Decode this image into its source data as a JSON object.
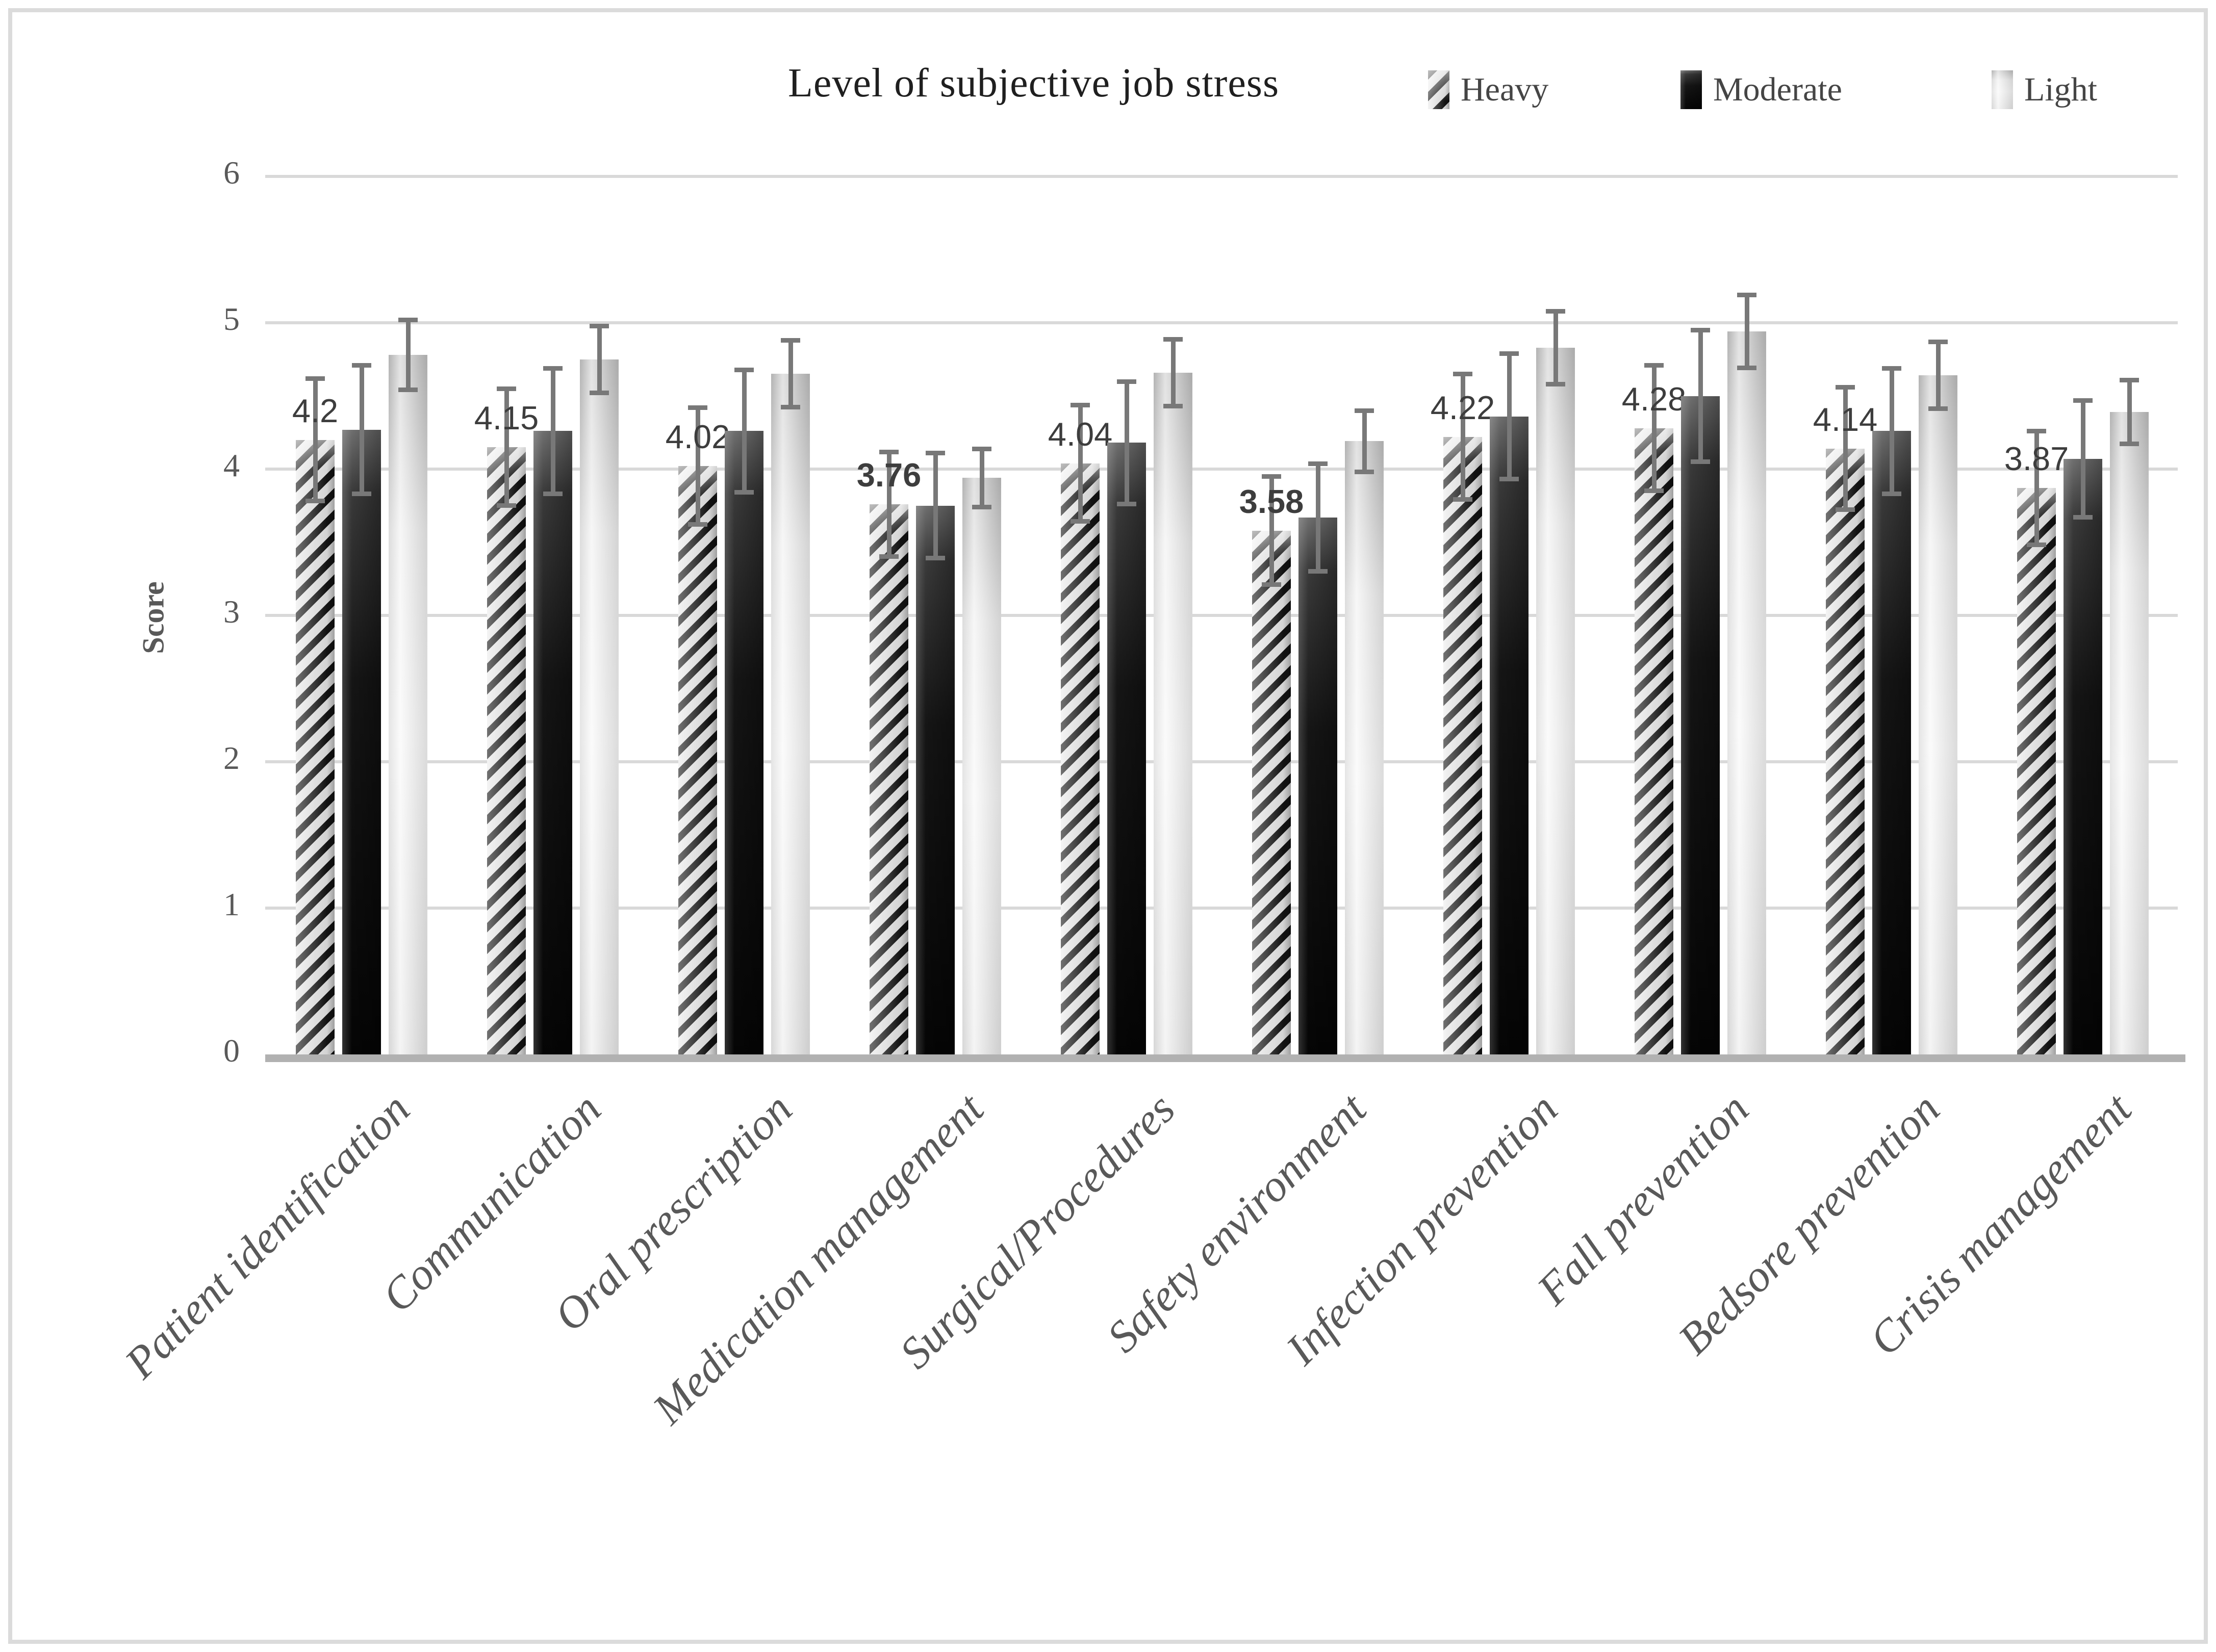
{
  "header": {
    "title": "Level of subjective job stress"
  },
  "legend": [
    {
      "label": "Heavy",
      "style": "hatched"
    },
    {
      "label": "Moderate",
      "style": "dark"
    },
    {
      "label": "Light",
      "style": "light"
    }
  ],
  "y_axis": {
    "title": "Score",
    "ticks": [
      "0",
      "1",
      "2",
      "3",
      "4",
      "5",
      "6"
    ]
  },
  "colors": {
    "hatch_dark": "#141414",
    "hatch_light": "#ebebeb",
    "moderate_fill": "#151515",
    "light_fill": "#ededed",
    "error_bar": "#787878",
    "gridline": "#d9d9d9",
    "axis_line": "#b1b1b1",
    "text_gray": "#595959",
    "figure_border": "#dbdbdb"
  },
  "chart_data": {
    "type": "bar",
    "title": "Level of subjective job stress",
    "xlabel": "",
    "ylabel": "Score",
    "ylim": [
      0,
      6
    ],
    "grid": true,
    "legend_position": "top",
    "categories": [
      "Patient identification",
      "Communication",
      "Oral prescription",
      "Medication management",
      "Surgical/Procedures",
      "Safety environment",
      "Infection prevention",
      "Fall prevention",
      "Bedsore prevention",
      "Crisis management"
    ],
    "series": [
      {
        "name": "Heavy",
        "values": [
          4.2,
          4.15,
          4.02,
          3.76,
          4.04,
          3.58,
          4.22,
          4.28,
          4.14,
          3.87
        ],
        "errors": [
          0.42,
          0.4,
          0.4,
          0.36,
          0.4,
          0.37,
          0.43,
          0.43,
          0.42,
          0.39
        ],
        "data_labels": [
          "4.2",
          "4.15",
          "4.02",
          "3.76",
          "4.04",
          "3.58",
          "4.22",
          "4.28",
          "4.14",
          "3.87"
        ],
        "bold_labels": [
          false,
          false,
          false,
          true,
          false,
          true,
          false,
          false,
          false,
          false
        ]
      },
      {
        "name": "Moderate",
        "values": [
          4.27,
          4.26,
          4.26,
          3.75,
          4.18,
          3.67,
          4.36,
          4.5,
          4.26,
          4.07
        ],
        "errors": [
          0.44,
          0.43,
          0.42,
          0.36,
          0.42,
          0.37,
          0.43,
          0.45,
          0.43,
          0.4
        ],
        "data_labels": []
      },
      {
        "name": "Light",
        "values": [
          4.78,
          4.75,
          4.65,
          3.94,
          4.66,
          4.19,
          4.83,
          4.94,
          4.64,
          4.39
        ],
        "errors": [
          0.24,
          0.23,
          0.23,
          0.2,
          0.23,
          0.21,
          0.25,
          0.25,
          0.23,
          0.22
        ],
        "data_labels": []
      }
    ]
  }
}
